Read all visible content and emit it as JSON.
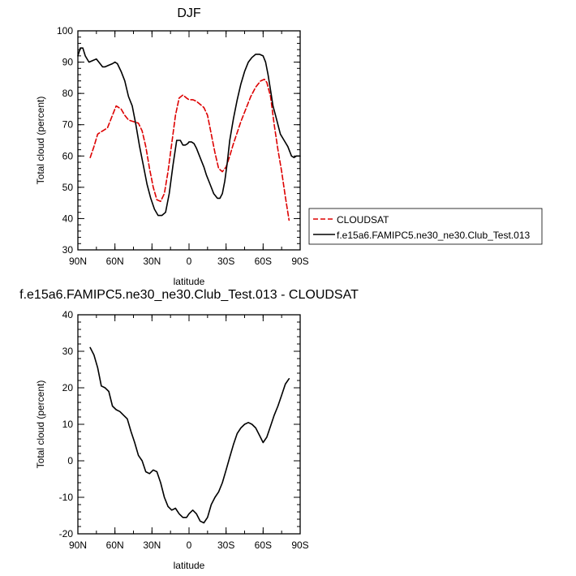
{
  "chart_data": [
    {
      "type": "line",
      "title": "DJF",
      "xlabel": "latitude",
      "ylabel": "Total cloud (percent)",
      "xlim": [
        90,
        -90
      ],
      "ylim": [
        30,
        100
      ],
      "x_ticks": [
        90,
        60,
        30,
        0,
        -30,
        -60,
        -90
      ],
      "x_tick_labels": [
        "90N",
        "60N",
        "30N",
        "0",
        "30S",
        "60S",
        "90S"
      ],
      "y_ticks": [
        30,
        40,
        50,
        60,
        70,
        80,
        90,
        100
      ],
      "legend_position": "right",
      "series": [
        {
          "name": "CLOUDSAT",
          "color": "#dd0000",
          "dash": "dashed",
          "x": [
            80,
            77,
            74,
            70,
            66,
            62,
            59,
            55,
            52,
            49,
            45,
            41,
            38,
            35,
            32,
            29,
            26,
            23,
            20,
            17,
            14,
            11,
            8,
            5,
            2,
            0,
            -3,
            -6,
            -9,
            -12,
            -15,
            -18,
            -21,
            -24,
            -27,
            -30,
            -33,
            -36,
            -39,
            -42,
            -46,
            -50,
            -54,
            -58,
            -61,
            -63,
            -66,
            -69,
            -72,
            -75,
            -78,
            -81
          ],
          "y": [
            59.5,
            63,
            67,
            68,
            69,
            73,
            76,
            75,
            73,
            71.5,
            71,
            70.5,
            68,
            63,
            56,
            50,
            46,
            45.5,
            48,
            55,
            64,
            73,
            78.5,
            79.5,
            78.5,
            78,
            78,
            77.5,
            76.5,
            75.5,
            73,
            67,
            61,
            56,
            55,
            56.5,
            60,
            64,
            67.5,
            71,
            75,
            79,
            82,
            84,
            84.5,
            83.5,
            79,
            70,
            62,
            55,
            47,
            39.5
          ]
        },
        {
          "name": "f.e15a6.FAMIPC5.ne30_ne30.Club_Test.013",
          "color": "#000000",
          "dash": "solid",
          "x": [
            90,
            88,
            86,
            84,
            81,
            78,
            75,
            72,
            70,
            68,
            65,
            62,
            60,
            58,
            55,
            52,
            49,
            46,
            43,
            40,
            37,
            34,
            31,
            28,
            25,
            22,
            19,
            16,
            13,
            10,
            7,
            5,
            3,
            1,
            0,
            -2,
            -4,
            -6,
            -8,
            -10,
            -12,
            -14,
            -17,
            -20,
            -23,
            -25,
            -27,
            -29,
            -31,
            -33,
            -36,
            -39,
            -42,
            -45,
            -48,
            -51,
            -54,
            -57,
            -60,
            -62,
            -64,
            -66,
            -68,
            -70,
            -72,
            -74,
            -77,
            -80,
            -83,
            -85,
            -87,
            -90
          ],
          "y": [
            92,
            94.5,
            94.5,
            92,
            90,
            90.5,
            91,
            89.5,
            88.5,
            88.5,
            89,
            89.5,
            90,
            89.5,
            87,
            84,
            79,
            76,
            70,
            63,
            57,
            51,
            46.5,
            43,
            41,
            41,
            42,
            48,
            57,
            65,
            65,
            63.5,
            63.5,
            64,
            64.5,
            64.5,
            64,
            62.5,
            60.5,
            58.5,
            56.5,
            54,
            51,
            48,
            46.5,
            46.5,
            48,
            52,
            58,
            65,
            72,
            78,
            83,
            87,
            90,
            91.5,
            92.5,
            92.5,
            92,
            90,
            86,
            81,
            76,
            73,
            70,
            67,
            65,
            63,
            60,
            59.5,
            60,
            60
          ]
        }
      ]
    },
    {
      "type": "line",
      "title": "f.e15a6.FAMIPC5.ne30_ne30.Club_Test.013 - CLOUDSAT",
      "xlabel": "latitude",
      "ylabel": "Total cloud (percent)",
      "xlim": [
        90,
        -90
      ],
      "ylim": [
        -20,
        40
      ],
      "x_ticks": [
        90,
        60,
        30,
        0,
        -30,
        -60,
        -90
      ],
      "x_tick_labels": [
        "90N",
        "60N",
        "30N",
        "0",
        "30S",
        "60S",
        "90S"
      ],
      "y_ticks": [
        -20,
        -10,
        0,
        10,
        20,
        30,
        40
      ],
      "series": [
        {
          "color": "#000000",
          "dash": "solid",
          "x": [
            80,
            77,
            74,
            71,
            68,
            65,
            62,
            59,
            56,
            53,
            50,
            47,
            44,
            41,
            38,
            35,
            32,
            29,
            26,
            23,
            20,
            17,
            14,
            11,
            8,
            5,
            2,
            0,
            -3,
            -6,
            -9,
            -12,
            -15,
            -18,
            -21,
            -24,
            -27,
            -30,
            -33,
            -36,
            -39,
            -42,
            -45,
            -48,
            -51,
            -54,
            -57,
            -60,
            -63,
            -66,
            -69,
            -72,
            -75,
            -78,
            -81
          ],
          "y": [
            31,
            29,
            25.5,
            20.5,
            20,
            19,
            15,
            14,
            13.5,
            12.5,
            11.5,
            8,
            5,
            1.5,
            0,
            -3,
            -3.5,
            -2.5,
            -3,
            -6,
            -10,
            -12.5,
            -13.5,
            -13,
            -14.5,
            -15.5,
            -15.5,
            -14.5,
            -13.5,
            -14.5,
            -16.5,
            -17,
            -15.5,
            -12,
            -10,
            -8.5,
            -6,
            -2.5,
            1,
            4.5,
            7.5,
            9,
            10,
            10.5,
            10,
            9,
            7,
            5,
            6.5,
            9.5,
            12.5,
            15,
            18,
            21,
            22.5
          ]
        }
      ]
    }
  ]
}
